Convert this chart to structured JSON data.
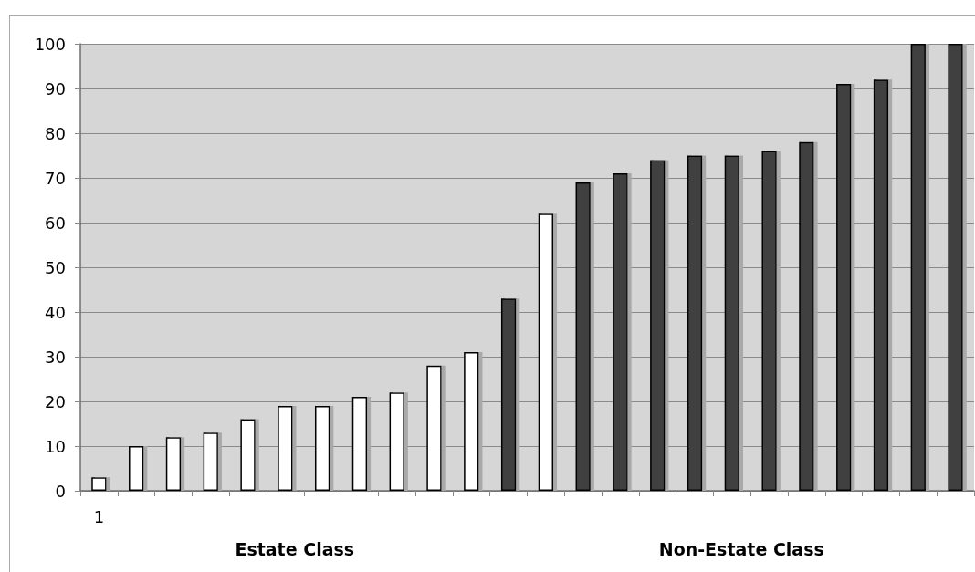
{
  "chart_data": {
    "type": "bar",
    "categories": [
      "1",
      null,
      null,
      null,
      null,
      null,
      null,
      null,
      null,
      null,
      null,
      null,
      null,
      null,
      null,
      null,
      null,
      null,
      null,
      null,
      null,
      null,
      null,
      null
    ],
    "values": [
      3,
      10,
      12,
      13,
      16,
      19,
      19,
      21,
      22,
      28,
      31,
      43,
      62,
      69,
      71,
      74,
      75,
      75,
      76,
      78,
      91,
      92,
      100,
      100
    ],
    "colors": [
      "#ffffff",
      "#ffffff",
      "#ffffff",
      "#ffffff",
      "#ffffff",
      "#ffffff",
      "#ffffff",
      "#ffffff",
      "#ffffff",
      "#ffffff",
      "#ffffff",
      "#404040",
      "#ffffff",
      "#404040",
      "#404040",
      "#404040",
      "#404040",
      "#404040",
      "#404040",
      "#404040",
      "#404040",
      "#404040",
      "#404040",
      "#404040"
    ],
    "ylim": [
      0,
      100
    ],
    "yticks": [
      0,
      10,
      20,
      30,
      40,
      50,
      60,
      70,
      80,
      90,
      100
    ],
    "grid": "y",
    "annotations": [
      "Estate Class",
      "Non-Estate Class"
    ]
  }
}
